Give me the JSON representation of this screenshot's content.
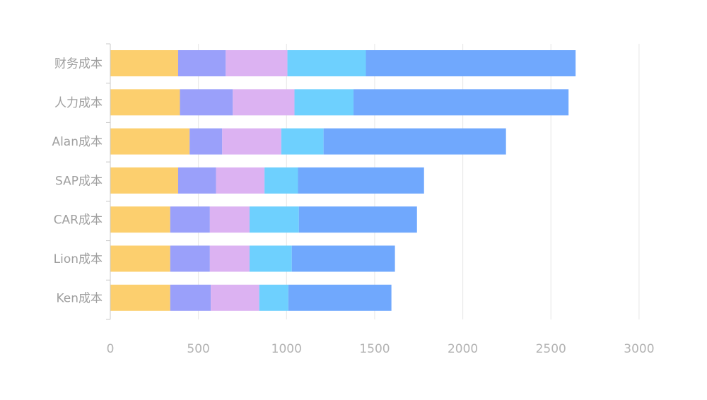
{
  "chart_data": {
    "type": "bar",
    "orientation": "horizontal",
    "stacked": true,
    "title": "",
    "xlabel": "",
    "ylabel": "",
    "categories": [
      "财务成本",
      "人力成本",
      "Alan成本",
      "SAP成本",
      "CAR成本",
      "Lion成本",
      "Ken成本"
    ],
    "series": [
      {
        "color": "#fccf6e",
        "values": [
          385,
          395,
          450,
          385,
          340,
          340,
          340
        ]
      },
      {
        "color": "#9aa0fa",
        "values": [
          270,
          300,
          185,
          215,
          225,
          225,
          230
        ]
      },
      {
        "color": "#dcb2f2",
        "values": [
          350,
          350,
          335,
          275,
          225,
          225,
          275
        ]
      },
      {
        "color": "#6ed0fe",
        "values": [
          445,
          335,
          240,
          190,
          280,
          240,
          165
        ]
      },
      {
        "color": "#70a8fd",
        "values": [
          1190,
          1220,
          1035,
          715,
          670,
          585,
          585
        ]
      }
    ],
    "xlim": [
      0,
      3000
    ],
    "xticks": [
      "0",
      "500",
      "1000",
      "1500",
      "2000",
      "2500",
      "3000"
    ],
    "grid": true,
    "legend": "none"
  }
}
